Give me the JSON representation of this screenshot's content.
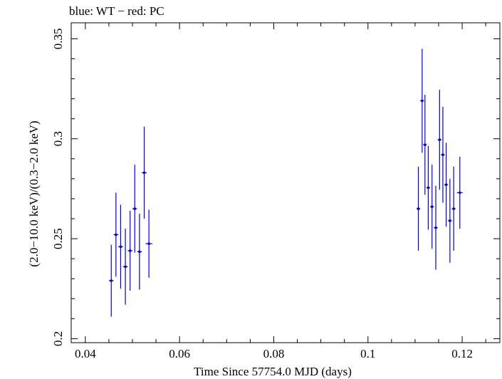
{
  "chart_data": {
    "type": "scatter",
    "title": "blue: WT − red: PC",
    "xlabel": "Time Since 57754.0 MJD (days)",
    "ylabel": "(2.0−10.0 keV)/(0.3−2.0 keV)",
    "xlim": [
      0.037,
      0.128
    ],
    "ylim": [
      0.198,
      0.358
    ],
    "x_ticks": [
      0.04,
      0.06,
      0.08,
      0.1,
      0.12
    ],
    "x_tick_labels": [
      "0.04",
      "0.06",
      "0.08",
      "0.1",
      "0.12"
    ],
    "y_ticks": [
      0.2,
      0.25,
      0.3,
      0.35
    ],
    "y_tick_labels": [
      "0.2",
      "0.25",
      "0.3",
      "0.35"
    ],
    "grid": false,
    "series": [
      {
        "name": "WT",
        "color": "#0000cc",
        "points": [
          {
            "x": 0.0455,
            "y": 0.229,
            "yerr": 0.018,
            "xerr": 0.0005
          },
          {
            "x": 0.0465,
            "y": 0.252,
            "yerr": 0.021,
            "xerr": 0.0005
          },
          {
            "x": 0.0475,
            "y": 0.246,
            "yerr": 0.021,
            "xerr": 0.0005
          },
          {
            "x": 0.0485,
            "y": 0.236,
            "yerr": 0.019,
            "xerr": 0.0005
          },
          {
            "x": 0.0495,
            "y": 0.244,
            "yerr": 0.02,
            "xerr": 0.0005
          },
          {
            "x": 0.0505,
            "y": 0.265,
            "yerr": 0.022,
            "xerr": 0.0005
          },
          {
            "x": 0.0515,
            "y": 0.2435,
            "yerr": 0.019,
            "xerr": 0.0005
          },
          {
            "x": 0.0525,
            "y": 0.283,
            "yerr": 0.023,
            "xerr": 0.0005
          },
          {
            "x": 0.0535,
            "y": 0.2475,
            "yerr": 0.017,
            "xerr": 0.0007
          },
          {
            "x": 0.1107,
            "y": 0.265,
            "yerr": 0.021,
            "xerr": 0.0004
          },
          {
            "x": 0.1115,
            "y": 0.319,
            "yerr": 0.026,
            "xerr": 0.0004
          },
          {
            "x": 0.1121,
            "y": 0.297,
            "yerr": 0.025,
            "xerr": 0.0004
          },
          {
            "x": 0.1128,
            "y": 0.2755,
            "yerr": 0.021,
            "xerr": 0.0004
          },
          {
            "x": 0.1136,
            "y": 0.266,
            "yerr": 0.021,
            "xerr": 0.0004
          },
          {
            "x": 0.1144,
            "y": 0.2555,
            "yerr": 0.021,
            "xerr": 0.0004
          },
          {
            "x": 0.1152,
            "y": 0.2995,
            "yerr": 0.025,
            "xerr": 0.0004
          },
          {
            "x": 0.1159,
            "y": 0.292,
            "yerr": 0.024,
            "xerr": 0.0004
          },
          {
            "x": 0.1166,
            "y": 0.277,
            "yerr": 0.021,
            "xerr": 0.0004
          },
          {
            "x": 0.1174,
            "y": 0.259,
            "yerr": 0.021,
            "xerr": 0.0004
          },
          {
            "x": 0.1182,
            "y": 0.265,
            "yerr": 0.021,
            "xerr": 0.0004
          },
          {
            "x": 0.1195,
            "y": 0.273,
            "yerr": 0.018,
            "xerr": 0.0006
          }
        ]
      }
    ]
  }
}
